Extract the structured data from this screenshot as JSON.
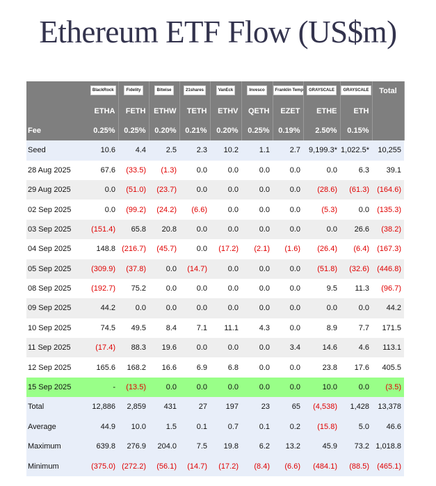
{
  "header": {
    "title": "Ethereum ETF Flow (US$m)"
  },
  "table": {
    "issuers": [
      "BlackRock",
      "Fidelity",
      "Bitwise",
      "21shares",
      "VanEck",
      "Invesco",
      "Franklin Templeton",
      "GRAYSCALE",
      "GRAYSCALE",
      "Total"
    ],
    "tickers": [
      "ETHA",
      "FETH",
      "ETHW",
      "TETH",
      "ETHV",
      "QETH",
      "EZET",
      "ETHE",
      "ETH"
    ],
    "fee_label": "Fee",
    "fees": [
      "0.25%",
      "0.25%",
      "0.20%",
      "0.21%",
      "0.20%",
      "0.25%",
      "0.19%",
      "2.50%",
      "0.15%"
    ],
    "rows": [
      [
        "Seed",
        "10.6",
        "4.4",
        "2.5",
        "2.3",
        "10.2",
        "1.1",
        "2.7",
        "9,199.3*",
        "1,022.5*",
        "10,255"
      ],
      [
        "28 Aug 2025",
        "67.6",
        "(33.5)",
        "(1.3)",
        "0.0",
        "0.0",
        "0.0",
        "0.0",
        "0.0",
        "6.3",
        "39.1"
      ],
      [
        "29 Aug 2025",
        "0.0",
        "(51.0)",
        "(23.7)",
        "0.0",
        "0.0",
        "0.0",
        "0.0",
        "(28.6)",
        "(61.3)",
        "(164.6)"
      ],
      [
        "02 Sep 2025",
        "0.0",
        "(99.2)",
        "(24.2)",
        "(6.6)",
        "0.0",
        "0.0",
        "0.0",
        "(5.3)",
        "0.0",
        "(135.3)"
      ],
      [
        "03 Sep 2025",
        "(151.4)",
        "65.8",
        "20.8",
        "0.0",
        "0.0",
        "0.0",
        "0.0",
        "0.0",
        "26.6",
        "(38.2)"
      ],
      [
        "04 Sep 2025",
        "148.8",
        "(216.7)",
        "(45.7)",
        "0.0",
        "(17.2)",
        "(2.1)",
        "(1.6)",
        "(26.4)",
        "(6.4)",
        "(167.3)"
      ],
      [
        "05 Sep 2025",
        "(309.9)",
        "(37.8)",
        "0.0",
        "(14.7)",
        "0.0",
        "0.0",
        "0.0",
        "(51.8)",
        "(32.6)",
        "(446.8)"
      ],
      [
        "08 Sep 2025",
        "(192.7)",
        "75.2",
        "0.0",
        "0.0",
        "0.0",
        "0.0",
        "0.0",
        "9.5",
        "11.3",
        "(96.7)"
      ],
      [
        "09 Sep 2025",
        "44.2",
        "0.0",
        "0.0",
        "0.0",
        "0.0",
        "0.0",
        "0.0",
        "0.0",
        "0.0",
        "44.2"
      ],
      [
        "10 Sep 2025",
        "74.5",
        "49.5",
        "8.4",
        "7.1",
        "11.1",
        "4.3",
        "0.0",
        "8.9",
        "7.7",
        "171.5"
      ],
      [
        "11 Sep 2025",
        "(17.4)",
        "88.3",
        "19.6",
        "0.0",
        "0.0",
        "0.0",
        "3.4",
        "14.6",
        "4.6",
        "113.1"
      ],
      [
        "12 Sep 2025",
        "165.6",
        "168.2",
        "16.6",
        "6.9",
        "6.8",
        "0.0",
        "0.0",
        "23.8",
        "17.6",
        "405.5"
      ],
      [
        "15 Sep 2025",
        "-",
        "(13.5)",
        "0.0",
        "0.0",
        "0.0",
        "0.0",
        "0.0",
        "10.0",
        "0.0",
        "(3.5)"
      ],
      [
        "Total",
        "12,886",
        "2,859",
        "431",
        "27",
        "197",
        "23",
        "65",
        "(4,538)",
        "1,428",
        "13,378"
      ],
      [
        "Average",
        "44.9",
        "10.0",
        "1.5",
        "0.1",
        "0.7",
        "0.1",
        "0.2",
        "(15.8)",
        "5.0",
        "46.6"
      ],
      [
        "Maximum",
        "639.8",
        "276.9",
        "204.0",
        "7.5",
        "19.8",
        "6.2",
        "13.2",
        "45.9",
        "73.2",
        "1,018.8"
      ],
      [
        "Minimum",
        "(375.0)",
        "(272.2)",
        "(56.1)",
        "(14.7)",
        "(17.2)",
        "(8.4)",
        "(6.6)",
        "(484.1)",
        "(88.5)",
        "(465.1)"
      ]
    ]
  }
}
